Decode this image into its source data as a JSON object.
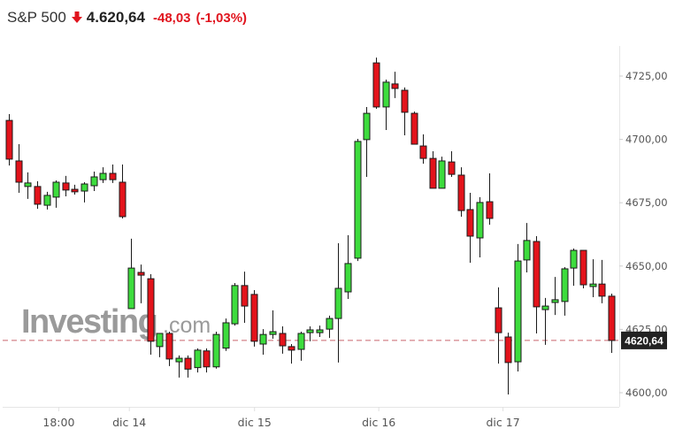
{
  "header": {
    "symbol": "S&P 500",
    "direction_icon": "arrow-down-icon",
    "last_price": "4.620,64",
    "change": "-48,03",
    "change_pct": "(-1,03%)"
  },
  "watermark": {
    "brand": "Investing",
    "suffix": ".com"
  },
  "colors": {
    "up": "#3ddc3d",
    "down": "#e3131b",
    "outline": "#1a1a1a",
    "negative_text": "#e0141e",
    "last_price_line": "#c9656e",
    "last_price_box": "#222222",
    "axis": "#e6e6e6"
  },
  "last_price_label": "4620,64",
  "chart_data": {
    "type": "candlestick",
    "title": "S&P 500",
    "xlabel": "",
    "ylabel": "",
    "ylim": [
      4596,
      4737
    ],
    "y_ticks": [
      "4725,00",
      "4700,00",
      "4675,00",
      "4650,00",
      "4625,00",
      "4600,00"
    ],
    "y_tick_values": [
      4725,
      4700,
      4675,
      4650,
      4625,
      4600
    ],
    "x_ticks": [
      {
        "label": "18:00",
        "index": 5.3
      },
      {
        "label": "dic 14",
        "index": 12.8
      },
      {
        "label": "dic 15",
        "index": 26.1
      },
      {
        "label": "dic 16",
        "index": 39.3
      },
      {
        "label": "dic 17",
        "index": 52.5
      }
    ],
    "grid": false,
    "last_price": 4620.64,
    "candles": [
      {
        "o": 4707.5,
        "h": 4710.0,
        "l": 4689.7,
        "c": 4692.2
      },
      {
        "o": 4691.5,
        "h": 4698.1,
        "l": 4678.9,
        "c": 4683.1
      },
      {
        "o": 4681.4,
        "h": 4687.0,
        "l": 4676.5,
        "c": 4682.8
      },
      {
        "o": 4681.4,
        "h": 4683.5,
        "l": 4672.6,
        "c": 4674.4
      },
      {
        "o": 4674.0,
        "h": 4679.3,
        "l": 4672.3,
        "c": 4677.9
      },
      {
        "o": 4677.2,
        "h": 4683.8,
        "l": 4673.0,
        "c": 4683.1
      },
      {
        "o": 4682.8,
        "h": 4685.6,
        "l": 4677.5,
        "c": 4680.0
      },
      {
        "o": 4680.3,
        "h": 4682.1,
        "l": 4678.2,
        "c": 4679.3
      },
      {
        "o": 4679.6,
        "h": 4683.1,
        "l": 4675.1,
        "c": 4682.4
      },
      {
        "o": 4681.7,
        "h": 4687.3,
        "l": 4679.6,
        "c": 4685.2
      },
      {
        "o": 4684.1,
        "h": 4689.0,
        "l": 4682.8,
        "c": 4686.6
      },
      {
        "o": 4686.6,
        "h": 4690.1,
        "l": 4682.8,
        "c": 4684.1
      },
      {
        "o": 4683.1,
        "h": 4690.1,
        "l": 4668.8,
        "c": 4669.5
      },
      {
        "o": 4633.2,
        "h": 4660.8,
        "l": 4633.2,
        "c": 4649.2
      },
      {
        "o": 4647.5,
        "h": 4650.6,
        "l": 4635.3,
        "c": 4646.4
      },
      {
        "o": 4645.0,
        "h": 4646.8,
        "l": 4615.0,
        "c": 4620.3
      },
      {
        "o": 4618.2,
        "h": 4623.4,
        "l": 4614.0,
        "c": 4623.4
      },
      {
        "o": 4623.4,
        "h": 4624.1,
        "l": 4610.5,
        "c": 4613.3
      },
      {
        "o": 4612.2,
        "h": 4614.7,
        "l": 4606.0,
        "c": 4613.6
      },
      {
        "o": 4613.6,
        "h": 4614.7,
        "l": 4606.0,
        "c": 4609.3
      },
      {
        "o": 4609.9,
        "h": 4617.5,
        "l": 4608.0,
        "c": 4616.8
      },
      {
        "o": 4616.5,
        "h": 4617.5,
        "l": 4608.0,
        "c": 4610.2
      },
      {
        "o": 4610.2,
        "h": 4624.1,
        "l": 4609.5,
        "c": 4623.0
      },
      {
        "o": 4617.6,
        "h": 4629.3,
        "l": 4616.5,
        "c": 4627.6
      },
      {
        "o": 4627.2,
        "h": 4643.3,
        "l": 4626.5,
        "c": 4642.3
      },
      {
        "o": 4642.3,
        "h": 4647.8,
        "l": 4627.6,
        "c": 4634.2
      },
      {
        "o": 4638.8,
        "h": 4640.5,
        "l": 4618.2,
        "c": 4620.3
      },
      {
        "o": 4619.2,
        "h": 4625.1,
        "l": 4615.0,
        "c": 4623.0
      },
      {
        "o": 4623.0,
        "h": 4632.5,
        "l": 4621.3,
        "c": 4624.1
      },
      {
        "o": 4623.4,
        "h": 4626.2,
        "l": 4615.4,
        "c": 4618.5
      },
      {
        "o": 4618.2,
        "h": 4619.2,
        "l": 4611.5,
        "c": 4616.8
      },
      {
        "o": 4617.1,
        "h": 4624.1,
        "l": 4612.6,
        "c": 4623.4
      },
      {
        "o": 4623.7,
        "h": 4626.2,
        "l": 4620.3,
        "c": 4624.8
      },
      {
        "o": 4623.7,
        "h": 4626.5,
        "l": 4622.0,
        "c": 4624.8
      },
      {
        "o": 4625.1,
        "h": 4630.4,
        "l": 4621.6,
        "c": 4629.3
      },
      {
        "o": 4629.3,
        "h": 4659.0,
        "l": 4611.9,
        "c": 4641.2
      },
      {
        "o": 4639.8,
        "h": 4662.2,
        "l": 4637.0,
        "c": 4651.0
      },
      {
        "o": 4653.1,
        "h": 4700.2,
        "l": 4652.0,
        "c": 4699.2
      },
      {
        "o": 4699.9,
        "h": 4712.8,
        "l": 4685.2,
        "c": 4710.3
      },
      {
        "o": 4730.2,
        "h": 4732.3,
        "l": 4712.1,
        "c": 4712.8
      },
      {
        "o": 4712.8,
        "h": 4723.6,
        "l": 4703.7,
        "c": 4722.6
      },
      {
        "o": 4721.9,
        "h": 4726.7,
        "l": 4716.3,
        "c": 4720.1
      },
      {
        "o": 4719.4,
        "h": 4720.5,
        "l": 4701.6,
        "c": 4710.7
      },
      {
        "o": 4710.3,
        "h": 4711.0,
        "l": 4698.1,
        "c": 4698.1
      },
      {
        "o": 4697.4,
        "h": 4702.0,
        "l": 4690.4,
        "c": 4692.5
      },
      {
        "o": 4692.5,
        "h": 4695.3,
        "l": 4680.7,
        "c": 4680.7
      },
      {
        "o": 4680.7,
        "h": 4693.2,
        "l": 4680.7,
        "c": 4691.5
      },
      {
        "o": 4691.1,
        "h": 4695.3,
        "l": 4685.2,
        "c": 4686.2
      },
      {
        "o": 4685.9,
        "h": 4689.0,
        "l": 4669.5,
        "c": 4671.9
      },
      {
        "o": 4672.3,
        "h": 4678.9,
        "l": 4651.3,
        "c": 4661.8
      },
      {
        "o": 4661.1,
        "h": 4677.2,
        "l": 4653.4,
        "c": 4675.1
      },
      {
        "o": 4675.4,
        "h": 4686.6,
        "l": 4666.3,
        "c": 4668.8
      },
      {
        "o": 4633.5,
        "h": 4641.6,
        "l": 4611.5,
        "c": 4623.7
      },
      {
        "o": 4622.0,
        "h": 4623.7,
        "l": 4599.3,
        "c": 4611.9
      },
      {
        "o": 4612.2,
        "h": 4658.7,
        "l": 4608.4,
        "c": 4652.0
      },
      {
        "o": 4652.4,
        "h": 4667.0,
        "l": 4647.5,
        "c": 4660.1
      },
      {
        "o": 4659.7,
        "h": 4661.8,
        "l": 4623.4,
        "c": 4633.9
      },
      {
        "o": 4632.8,
        "h": 4637.4,
        "l": 4618.9,
        "c": 4634.2
      },
      {
        "o": 4635.6,
        "h": 4645.7,
        "l": 4630.7,
        "c": 4636.7
      },
      {
        "o": 4636.0,
        "h": 4649.6,
        "l": 4630.4,
        "c": 4648.9
      },
      {
        "o": 4649.2,
        "h": 4656.9,
        "l": 4642.2,
        "c": 4656.2
      },
      {
        "o": 4656.2,
        "h": 4656.2,
        "l": 4641.2,
        "c": 4642.6
      },
      {
        "o": 4641.9,
        "h": 4652.7,
        "l": 4637.7,
        "c": 4642.9
      },
      {
        "o": 4642.9,
        "h": 4652.4,
        "l": 4635.3,
        "c": 4638.1
      },
      {
        "o": 4638.1,
        "h": 4639.1,
        "l": 4615.7,
        "c": 4620.6
      }
    ]
  }
}
